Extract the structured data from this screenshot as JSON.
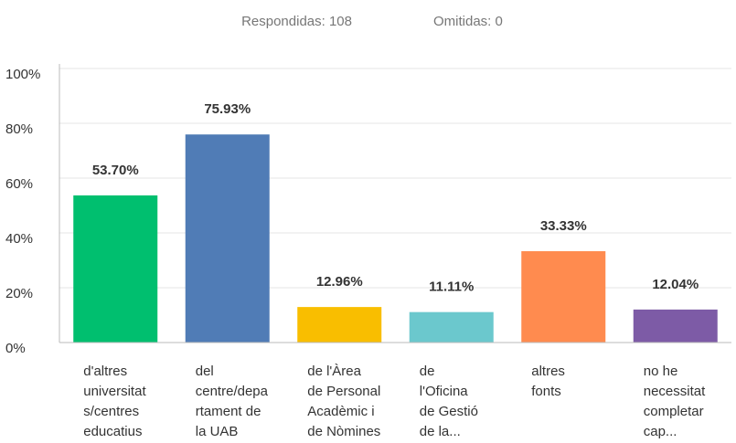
{
  "chart_data": {
    "type": "bar",
    "header": [
      "Respondidas: 108",
      "Omitidas: 0"
    ],
    "categories": [
      [
        "d'altres",
        "universitat",
        "s/centres",
        "educatius"
      ],
      [
        "del",
        "centre/depa",
        "rtament de",
        "la UAB"
      ],
      [
        "de l'Àrea",
        "de Personal",
        "Acadèmic i",
        "de Nòmines"
      ],
      [
        "de",
        "l'Oficina",
        "de Gestió",
        "de la..."
      ],
      [
        "altres",
        "fonts"
      ],
      [
        "no he",
        "necessitat",
        "completar",
        "cap..."
      ]
    ],
    "values": [
      53.7,
      75.93,
      12.96,
      11.11,
      33.33,
      12.04
    ],
    "value_labels": [
      "53.70%",
      "75.93%",
      "12.96%",
      "11.11%",
      "33.33%",
      "12.04%"
    ],
    "colors": [
      "#00bf6f",
      "#507cb6",
      "#f9be00",
      "#6bc8cd",
      "#ff8b4f",
      "#7d5ba6"
    ],
    "ylim": [
      0,
      100
    ],
    "yticks": [
      {
        "value": 0,
        "label": "0%"
      },
      {
        "value": 20,
        "label": "20%"
      },
      {
        "value": 40,
        "label": "40%"
      },
      {
        "value": 60,
        "label": "60%"
      },
      {
        "value": 80,
        "label": "80%"
      },
      {
        "value": 100,
        "label": "100%"
      }
    ],
    "grid": true
  }
}
